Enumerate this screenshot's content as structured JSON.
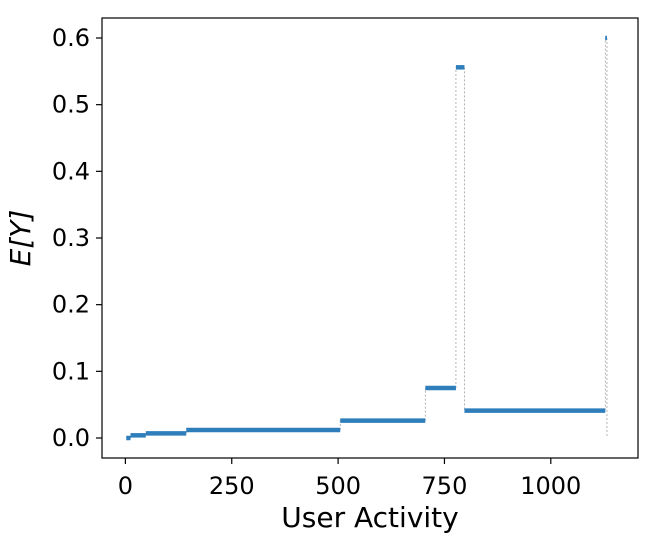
{
  "chart_data": {
    "type": "step",
    "xlabel": "User Activity",
    "ylabel": "E[Y]",
    "xlim": [
      -55,
      1205
    ],
    "ylim": [
      -0.03,
      0.63
    ],
    "xticks": [
      0,
      250,
      500,
      750,
      1000
    ],
    "xtick_labels": [
      "0",
      "250",
      "500",
      "750",
      "1000"
    ],
    "yticks": [
      0.0,
      0.1,
      0.2,
      0.3,
      0.4,
      0.5,
      0.6
    ],
    "ytick_labels": [
      "0.0",
      "0.1",
      "0.2",
      "0.3",
      "0.4",
      "0.5",
      "0.6"
    ],
    "grid": false,
    "segments": [
      {
        "x_start": 2,
        "x_end": 12,
        "y": 0.0
      },
      {
        "x_start": 12,
        "x_end": 48,
        "y": 0.004
      },
      {
        "x_start": 48,
        "x_end": 143,
        "y": 0.007
      },
      {
        "x_start": 143,
        "x_end": 505,
        "y": 0.012
      },
      {
        "x_start": 505,
        "x_end": 705,
        "y": 0.026
      },
      {
        "x_start": 705,
        "x_end": 777,
        "y": 0.075
      },
      {
        "x_start": 777,
        "x_end": 797,
        "y": 0.556
      },
      {
        "x_start": 797,
        "x_end": 1128,
        "y": 0.041
      },
      {
        "x_start": 1128,
        "x_end": 1132,
        "y": 0.6
      }
    ],
    "colors": {
      "series": "#2e7ebc",
      "connector": "#a0a0a0"
    }
  }
}
